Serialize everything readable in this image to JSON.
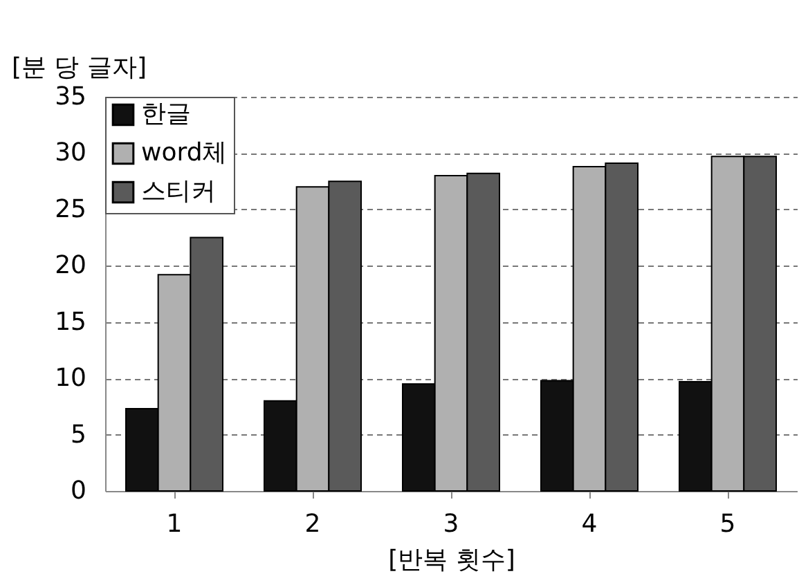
{
  "chart_data": {
    "type": "bar",
    "ylabel": "[분 당 글자]",
    "xlabel": "[반복 횟수]",
    "categories": [
      "1",
      "2",
      "3",
      "4",
      "5"
    ],
    "series": [
      {
        "name": "한글",
        "color": "#111111",
        "values": [
          7.3,
          8.0,
          9.5,
          9.8,
          9.7
        ]
      },
      {
        "name": "word체",
        "color": "#b0b0b0",
        "values": [
          19.2,
          27.0,
          28.0,
          28.8,
          29.7
        ]
      },
      {
        "name": "스티커",
        "color": "#5a5a5a",
        "values": [
          22.5,
          27.5,
          28.2,
          29.1,
          29.7
        ]
      }
    ],
    "ylim": [
      0,
      35
    ],
    "yticks": [
      0,
      5,
      10,
      15,
      20,
      25,
      30,
      35
    ],
    "grid": "y",
    "legend": "top left"
  }
}
